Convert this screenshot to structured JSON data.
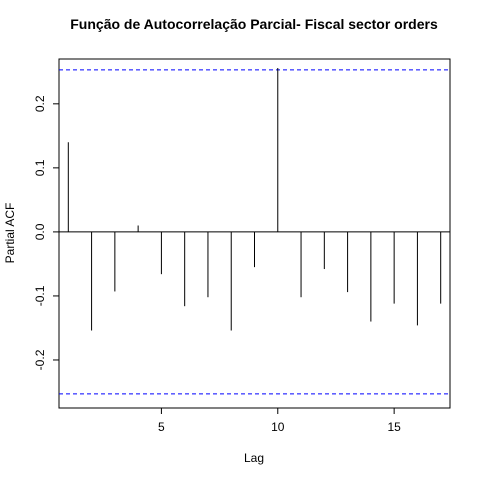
{
  "chart_data": {
    "type": "bar",
    "title": "Função de Autocorrelação Parcial- Fiscal sector orders",
    "xlabel": "Lag",
    "ylabel": "Partial ACF",
    "x": [
      1,
      2,
      3,
      4,
      5,
      6,
      7,
      8,
      9,
      10,
      11,
      12,
      13,
      14,
      15,
      16,
      17
    ],
    "values": [
      0.14,
      -0.154,
      -0.093,
      0.01,
      -0.066,
      -0.116,
      -0.102,
      -0.154,
      -0.055,
      0.256,
      -0.102,
      -0.058,
      -0.094,
      -0.14,
      -0.112,
      -0.146,
      -0.112
    ],
    "confidence_bound": 0.253,
    "xlim": [
      0.6,
      17.4
    ],
    "ylim": [
      -0.275,
      0.27
    ],
    "x_ticks": [
      5,
      10,
      15
    ],
    "y_ticks": [
      -0.2,
      -0.1,
      0.0,
      0.1,
      0.2
    ],
    "x_tick_labels": [
      "5",
      "10",
      "15"
    ],
    "y_tick_labels": [
      "-0.2",
      "-0.1",
      "0.0",
      "0.1",
      "0.2"
    ],
    "confidence_color": "#0000ff",
    "bar_color": "#000000",
    "grid": false
  }
}
